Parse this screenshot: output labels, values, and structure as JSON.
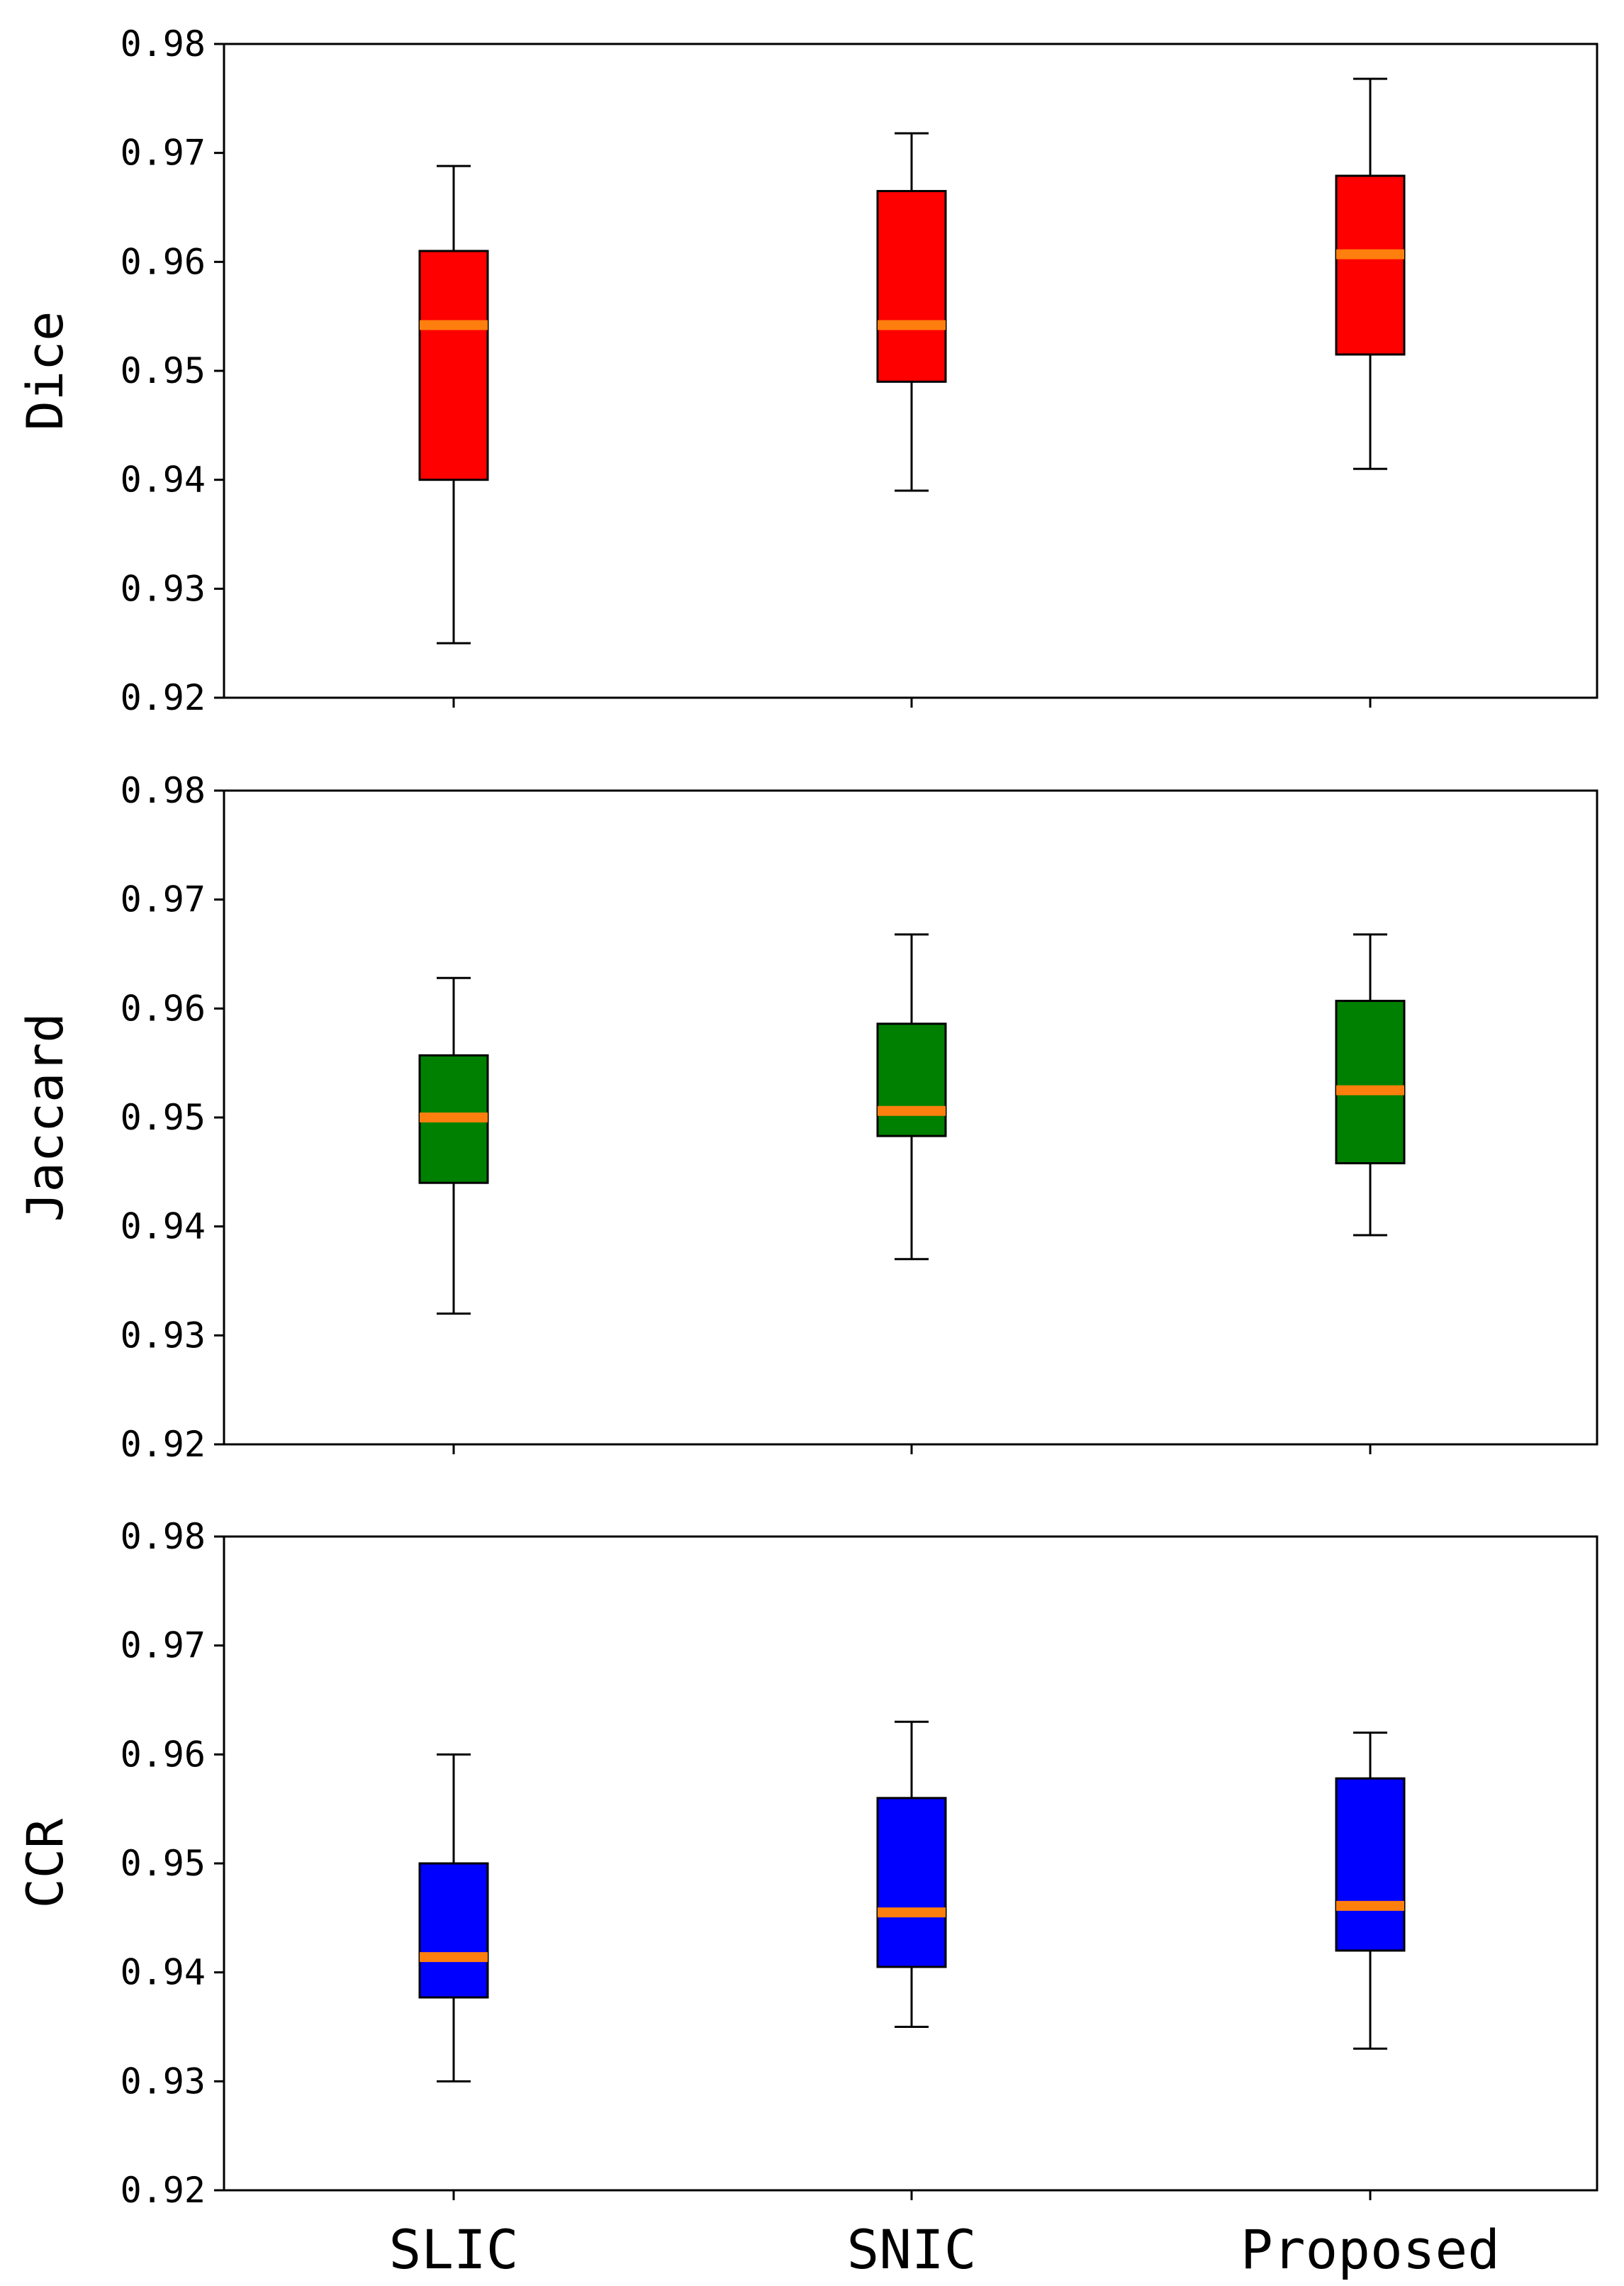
{
  "chart_data": [
    {
      "type": "box",
      "panel": "top",
      "ylabel": "Dice",
      "ylim": [
        0.92,
        0.98
      ],
      "yticks": [
        "0.92",
        "0.93",
        "0.94",
        "0.95",
        "0.96",
        "0.97",
        "0.98"
      ],
      "categories": [
        "SLIC",
        "SNIC",
        "Proposed"
      ],
      "box_color": "#ff0000",
      "median_color": "#ff7f0e",
      "boxes": [
        {
          "category": "SLIC",
          "whisker_low": 0.925,
          "q1": 0.94,
          "median": 0.9542,
          "q3": 0.961,
          "whisker_high": 0.9688
        },
        {
          "category": "SNIC",
          "whisker_low": 0.939,
          "q1": 0.949,
          "median": 0.9542,
          "q3": 0.9665,
          "whisker_high": 0.9718
        },
        {
          "category": "Proposed",
          "whisker_low": 0.941,
          "q1": 0.9515,
          "median": 0.9607,
          "q3": 0.9679,
          "whisker_high": 0.9768
        }
      ]
    },
    {
      "type": "box",
      "panel": "middle",
      "ylabel": "Jaccard",
      "ylim": [
        0.92,
        0.98
      ],
      "yticks": [
        "0.92",
        "0.93",
        "0.94",
        "0.95",
        "0.96",
        "0.97",
        "0.98"
      ],
      "categories": [
        "SLIC",
        "SNIC",
        "Proposed"
      ],
      "box_color": "#008000",
      "median_color": "#ff7f0e",
      "boxes": [
        {
          "category": "SLIC",
          "whisker_low": 0.932,
          "q1": 0.944,
          "median": 0.95,
          "q3": 0.9557,
          "whisker_high": 0.9628
        },
        {
          "category": "SNIC",
          "whisker_low": 0.937,
          "q1": 0.9483,
          "median": 0.9506,
          "q3": 0.9586,
          "whisker_high": 0.9668
        },
        {
          "category": "Proposed",
          "whisker_low": 0.9392,
          "q1": 0.9458,
          "median": 0.9525,
          "q3": 0.9607,
          "whisker_high": 0.9668
        }
      ]
    },
    {
      "type": "box",
      "panel": "bottom",
      "ylabel": "CCR",
      "ylim": [
        0.92,
        0.98
      ],
      "yticks": [
        "0.92",
        "0.93",
        "0.94",
        "0.95",
        "0.96",
        "0.97",
        "0.98"
      ],
      "categories": [
        "SLIC",
        "SNIC",
        "Proposed"
      ],
      "box_color": "#0000ff",
      "median_color": "#ff7f0e",
      "boxes": [
        {
          "category": "SLIC",
          "whisker_low": 0.93,
          "q1": 0.9377,
          "median": 0.9414,
          "q3": 0.95,
          "whisker_high": 0.96
        },
        {
          "category": "SNIC",
          "whisker_low": 0.935,
          "q1": 0.9405,
          "median": 0.9455,
          "q3": 0.956,
          "whisker_high": 0.963
        },
        {
          "category": "Proposed",
          "whisker_low": 0.933,
          "q1": 0.942,
          "median": 0.9461,
          "q3": 0.9578,
          "whisker_high": 0.962
        }
      ]
    }
  ]
}
